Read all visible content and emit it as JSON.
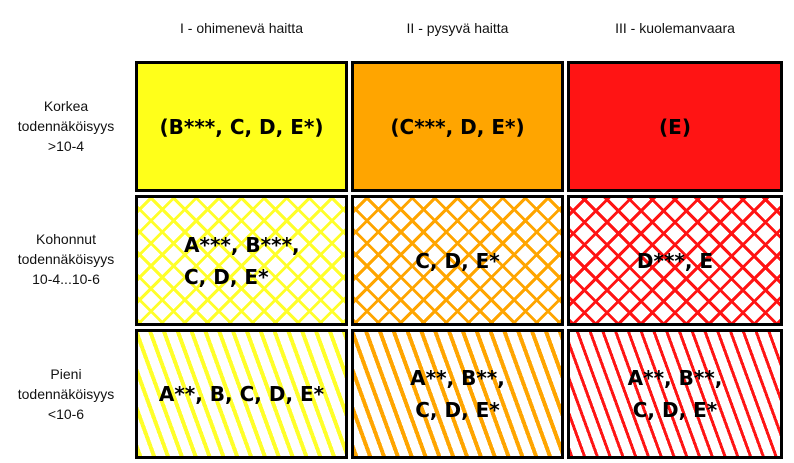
{
  "columns": [
    "I - ohimenevä haitta",
    "II - pysyvä haitta",
    "III - kuolemanvaara"
  ],
  "rows": [
    {
      "lines": [
        "Korkea",
        "todennäköisyys",
        ">10-4"
      ]
    },
    {
      "lines": [
        "Kohonnut",
        "todennäköisyys",
        "10-4...10-6"
      ]
    },
    {
      "lines": [
        "Pieni",
        "todennäköisyys",
        "<10-6"
      ]
    }
  ],
  "cells": [
    [
      {
        "lines": [
          "(B***, C, D, E*)"
        ],
        "fill": "solid",
        "color": "#ffff1a"
      },
      {
        "lines": [
          "(C***, D, E*)"
        ],
        "fill": "solid",
        "color": "#ffa500"
      },
      {
        "lines": [
          "(E)"
        ],
        "fill": "solid",
        "color": "#ff1414"
      }
    ],
    [
      {
        "lines": [
          "A***, B***,",
          "C, D, E*"
        ],
        "fill": "crosshatch",
        "color": "#ffff1a"
      },
      {
        "lines": [
          "C, D, E*"
        ],
        "fill": "crosshatch",
        "color": "#ffa500"
      },
      {
        "lines": [
          "D***, E"
        ],
        "fill": "crosshatch",
        "color": "#ff1414"
      }
    ],
    [
      {
        "lines": [
          "A**, B, C, D, E*"
        ],
        "fill": "diagonal-stripes",
        "color": "#ffff1a"
      },
      {
        "lines": [
          "A**, B**,",
          "C, D, E*"
        ],
        "fill": "diagonal-stripes",
        "color": "#ffa500"
      },
      {
        "lines": [
          "A**, B**,",
          "C, D, E*"
        ],
        "fill": "diagonal-stripes",
        "color": "#ff1414"
      }
    ]
  ]
}
